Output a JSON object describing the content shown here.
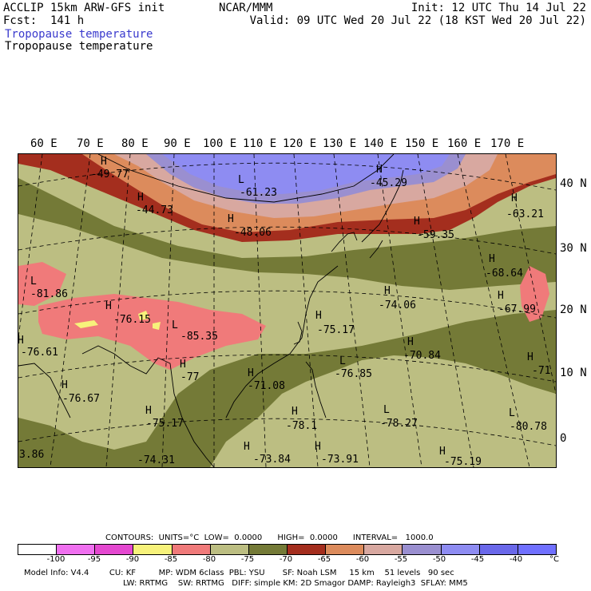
{
  "header": {
    "model": "ACCLIP 15km ARW-GFS init",
    "fcst": "Fcst:  141 h",
    "org": "NCAR/MMM",
    "init": "Init: 12 UTC Thu 14 Jul 22",
    "valid": "Valid: 09 UTC Wed 20 Jul 22 (18 KST Wed 20 Jul 22)",
    "field_colored": "Tropopause temperature",
    "field_contour": "Tropopause temperature"
  },
  "map": {
    "lon_labels": [
      "60 E",
      "70 E",
      "80 E",
      "90 E",
      "100 E",
      "110 E",
      "120 E",
      "130 E",
      "140 E",
      "150 E",
      "160 E",
      "170 E"
    ],
    "lat_labels": [
      "40 N",
      "30 N",
      "20 N",
      "10 N",
      "0"
    ],
    "colors": {
      "c-70": "#bcbe82",
      "c-75": "#747a37",
      "c-65": "#a42e1e",
      "c-60": "#dc8b5c",
      "c-55": "#d8a8a0",
      "c-50": "#9a8fd0",
      "c-45": "#8e8cf2",
      "c-80": "#f07a7a",
      "c-85": "#f7f27b",
      "outside": "#bcbe82"
    },
    "highs_lows": [
      {
        "mark": "H",
        "value": "-49.77"
      },
      {
        "mark": "L",
        "value": "-61.23"
      },
      {
        "mark": "H",
        "value": "-45.29"
      },
      {
        "mark": "H",
        "value": "-44.73"
      },
      {
        "mark": "H",
        "value": "-48.06"
      },
      {
        "mark": "H",
        "value": "-63.21"
      },
      {
        "mark": "H",
        "value": "-59.35"
      },
      {
        "mark": "H",
        "value": "-68.64"
      },
      {
        "mark": "L",
        "value": "-81.86"
      },
      {
        "mark": "H",
        "value": "-76.15"
      },
      {
        "mark": "H",
        "value": "-74.06"
      },
      {
        "mark": "H",
        "value": "-67.99"
      },
      {
        "mark": "L",
        "value": "-85.35"
      },
      {
        "mark": "H",
        "value": "-75.17"
      },
      {
        "mark": "H",
        "value": "-76.61"
      },
      {
        "mark": "H",
        "value": "-70.84"
      },
      {
        "mark": "H",
        "value": "-77"
      },
      {
        "mark": "L",
        "value": "-76.85"
      },
      {
        "mark": "H",
        "value": "-71"
      },
      {
        "mark": "H",
        "value": "-71.08"
      },
      {
        "mark": "H",
        "value": "-76.67"
      },
      {
        "mark": "H",
        "value": "-75.17"
      },
      {
        "mark": "L",
        "value": "-78.27"
      },
      {
        "mark": "L",
        "value": "-80.78"
      },
      {
        "mark": "H",
        "value": "-78.1"
      },
      {
        "mark": "H",
        "value": "-73.84"
      },
      {
        "mark": "H",
        "value": "-73.91"
      },
      {
        "mark": "H",
        "value": "-75.19"
      },
      {
        "mark": "",
        "value": "-74.31"
      },
      {
        "mark": "",
        "value": "3.86"
      }
    ]
  },
  "contours_line": {
    "label": "CONTOURS:  UNITS=°C  LOW=  0.0000      HIGH=  0.0000      INTERVAL=   1000.0"
  },
  "colorbar": {
    "colors": [
      "#ffffff",
      "#f070f0",
      "#e448d0",
      "#f7f27b",
      "#f07a7a",
      "#bcbe82",
      "#747a37",
      "#a42e1e",
      "#dc8b5c",
      "#d8a8a0",
      "#9a8fd0",
      "#8e8cf2",
      "#6a68ea",
      "#7070ff"
    ],
    "ticks": [
      "-100",
      "-95",
      "-90",
      "-85",
      "-80",
      "-75",
      "-70",
      "-65",
      "-60",
      "-55",
      "-50",
      "-45",
      "-40",
      "°C"
    ]
  },
  "footer": {
    "line1": "Model Info: V4.4        CU: KF         MP: WDM 6class  PBL: YSU       SF: Noah LSM     15 km    51 levels   90 sec",
    "line2": "LW: RRTMG    SW: RRTMG   DIFF: simple KM: 2D Smagor DAMP: Rayleigh3  SFLAY: MM5"
  }
}
